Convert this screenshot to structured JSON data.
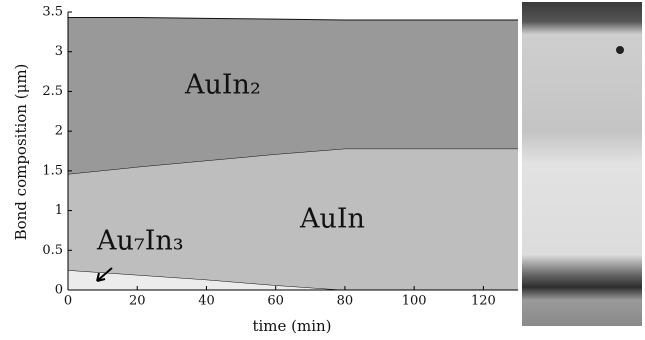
{
  "chart_data": {
    "type": "stacked-area",
    "x_label": "time (min)",
    "y_label": "Bond composition (μm)",
    "x": [
      0,
      20,
      40,
      60,
      80,
      100,
      120,
      130
    ],
    "series": [
      {
        "name": "Au₇In₃",
        "color": "#ececec",
        "values": [
          0.25,
          0.19,
          0.13,
          0.06,
          0,
          0,
          0,
          0
        ]
      },
      {
        "name": "AuIn",
        "color": "#bebebe",
        "values": [
          1.21,
          1.36,
          1.5,
          1.65,
          1.78,
          1.78,
          1.78,
          1.78
        ]
      },
      {
        "name": "AuIn₂",
        "color": "#999999",
        "values": [
          1.97,
          1.88,
          1.79,
          1.7,
          1.62,
          1.62,
          1.62,
          1.62
        ]
      }
    ],
    "xlim": [
      0,
      130
    ],
    "xticks": [
      0,
      20,
      40,
      60,
      80,
      100,
      120
    ],
    "ylim": [
      0,
      3.5
    ],
    "yticks": [
      0,
      0.5,
      1,
      1.5,
      2,
      2.5,
      3,
      3.5
    ]
  }
}
